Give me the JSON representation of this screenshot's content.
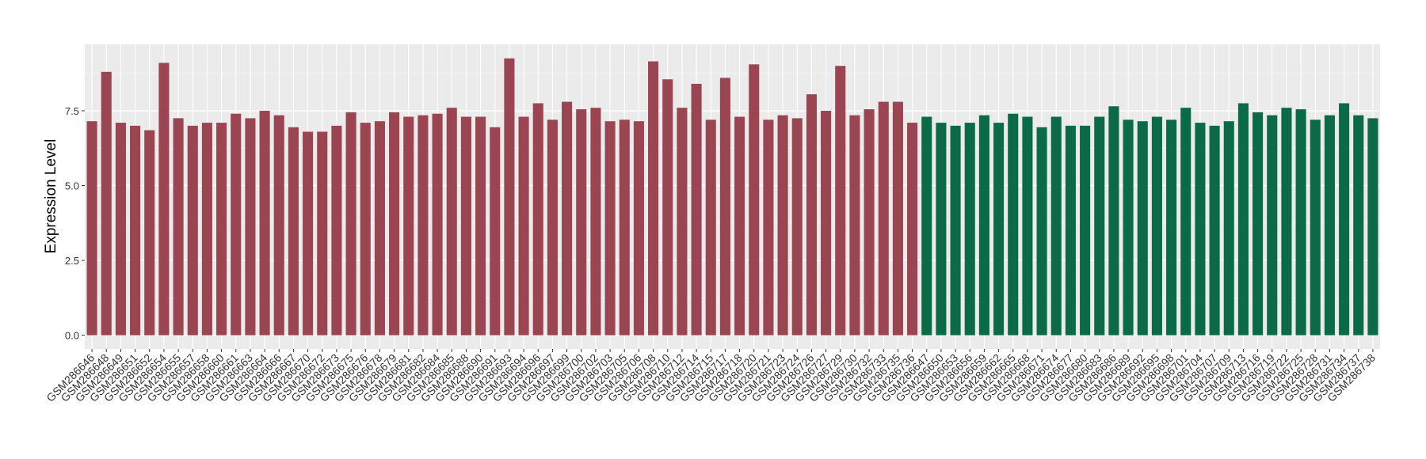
{
  "chart_data": {
    "type": "bar",
    "y_label": "Expression Level",
    "categories": [
      "GSM286646",
      "GSM286648",
      "GSM286649",
      "GSM286651",
      "GSM286652",
      "GSM286654",
      "GSM286655",
      "GSM286657",
      "GSM286658",
      "GSM286660",
      "GSM286661",
      "GSM286663",
      "GSM286664",
      "GSM286666",
      "GSM286667",
      "GSM286670",
      "GSM286672",
      "GSM286673",
      "GSM286675",
      "GSM286676",
      "GSM286678",
      "GSM286679",
      "GSM286681",
      "GSM286682",
      "GSM286684",
      "GSM286685",
      "GSM286688",
      "GSM286690",
      "GSM286691",
      "GSM286693",
      "GSM286694",
      "GSM286696",
      "GSM286697",
      "GSM286699",
      "GSM286700",
      "GSM286702",
      "GSM286703",
      "GSM286705",
      "GSM286706",
      "GSM286708",
      "GSM286710",
      "GSM286712",
      "GSM286714",
      "GSM286715",
      "GSM286717",
      "GSM286718",
      "GSM286720",
      "GSM286721",
      "GSM286723",
      "GSM286724",
      "GSM286726",
      "GSM286727",
      "GSM286729",
      "GSM286730",
      "GSM286732",
      "GSM286733",
      "GSM286735",
      "GSM286736",
      "GSM286647",
      "GSM286650",
      "GSM286653",
      "GSM286656",
      "GSM286659",
      "GSM286662",
      "GSM286665",
      "GSM286668",
      "GSM286671",
      "GSM286674",
      "GSM286677",
      "GSM286680",
      "GSM286683",
      "GSM286686",
      "GSM286689",
      "GSM286692",
      "GSM286695",
      "GSM286698",
      "GSM286701",
      "GSM286704",
      "GSM286707",
      "GSM286709",
      "GSM286713",
      "GSM286716",
      "GSM286719",
      "GSM286722",
      "GSM286725",
      "GSM286728",
      "GSM286731",
      "GSM286734",
      "GSM286737",
      "GSM286738"
    ],
    "series": [
      {
        "color": "#9b4452",
        "values": [
          7.15,
          8.8,
          7.1,
          7.0,
          6.85,
          9.1,
          7.25,
          7.0,
          7.1,
          7.1,
          7.4,
          7.25,
          7.5,
          7.35,
          6.95,
          6.8,
          6.8,
          7.0,
          7.45,
          7.1,
          7.15,
          7.45,
          7.3,
          7.35,
          7.4,
          7.6,
          7.3,
          7.3,
          6.95,
          9.25,
          7.3,
          7.75,
          7.2,
          7.8,
          7.55,
          7.6,
          7.15,
          7.2,
          7.15,
          9.15,
          8.55,
          7.6,
          8.4,
          7.2,
          8.6,
          7.3,
          9.05,
          7.2,
          7.35,
          7.25,
          8.05,
          7.5,
          9.0,
          7.35,
          7.55,
          7.8,
          7.8,
          7.1,
          null,
          null,
          null,
          null,
          null,
          null,
          null,
          null,
          null,
          null,
          null,
          null,
          null,
          null,
          null,
          null,
          null,
          null,
          null,
          null,
          null,
          null,
          null,
          null,
          null,
          null,
          null,
          null,
          null,
          null,
          null,
          null
        ]
      },
      {
        "color": "#0b6a47",
        "values": [
          null,
          null,
          null,
          null,
          null,
          null,
          null,
          null,
          null,
          null,
          null,
          null,
          null,
          null,
          null,
          null,
          null,
          null,
          null,
          null,
          null,
          null,
          null,
          null,
          null,
          null,
          null,
          null,
          null,
          null,
          null,
          null,
          null,
          null,
          null,
          null,
          null,
          null,
          null,
          null,
          null,
          null,
          null,
          null,
          null,
          null,
          null,
          null,
          null,
          null,
          null,
          null,
          null,
          null,
          null,
          null,
          null,
          null,
          7.3,
          7.1,
          7.0,
          7.1,
          7.35,
          7.1,
          7.4,
          7.3,
          6.95,
          7.3,
          7.0,
          7.0,
          7.3,
          7.65,
          7.2,
          7.15,
          7.3,
          7.2,
          7.6,
          7.1,
          7.0,
          7.15,
          7.75,
          7.45,
          7.35,
          7.6,
          7.55,
          7.2,
          7.35,
          7.75,
          7.35,
          7.25
        ]
      }
    ],
    "ylim": [
      -0.46,
      9.72
    ],
    "yticks": [
      {
        "value": 0,
        "label": "0.0"
      },
      {
        "value": 2.5,
        "label": "2.5"
      },
      {
        "value": 5,
        "label": "5.0"
      },
      {
        "value": 7.5,
        "label": "7.5"
      }
    ],
    "grid": true
  }
}
